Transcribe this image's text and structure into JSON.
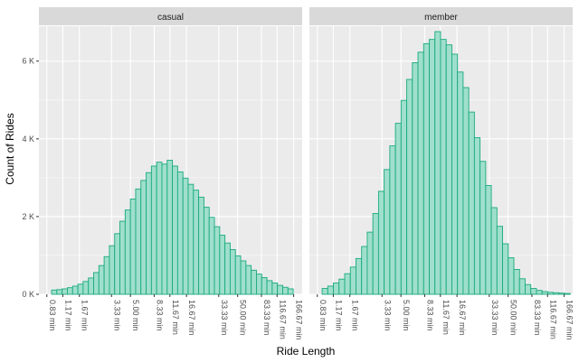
{
  "chart_data": {
    "type": "bar",
    "ylabel": "Count of Rides",
    "xlabel": "Ride Length",
    "x_scale": "log",
    "y_ticks": [
      0,
      2000,
      4000,
      6000
    ],
    "y_tick_labels": [
      "0 K",
      "2 K",
      "4 K",
      "6 K"
    ],
    "ylim": [
      0,
      6900
    ],
    "x_ticks": [
      0.83,
      1.17,
      1.67,
      3.33,
      5.0,
      8.33,
      11.67,
      16.67,
      33.33,
      50.0,
      83.33,
      116.67,
      166.67
    ],
    "x_tick_labels": [
      "0.83 min",
      "1.17 min",
      "1.67 min",
      "3.33 min",
      "5.00 min",
      "8.33 min",
      "11.67 min",
      "16.67 min",
      "33.33 min",
      "50.00 min",
      "83.33 min",
      "116.67 min",
      "166.67 min"
    ],
    "facets": [
      {
        "name": "casual",
        "values": [
          110,
          120,
          140,
          170,
          210,
          260,
          330,
          420,
          560,
          740,
          970,
          1250,
          1560,
          1880,
          2170,
          2450,
          2710,
          2930,
          3130,
          3300,
          3400,
          3350,
          3450,
          3300,
          3150,
          2990,
          2830,
          2680,
          2500,
          2240,
          1980,
          1740,
          1520,
          1320,
          1150,
          990,
          860,
          740,
          620,
          520,
          430,
          350,
          290,
          230,
          180,
          140
        ]
      },
      {
        "name": "member",
        "values": [
          150,
          210,
          290,
          390,
          530,
          700,
          920,
          1230,
          1600,
          2080,
          2650,
          3210,
          3820,
          4400,
          4990,
          5530,
          5960,
          6230,
          6450,
          6560,
          6760,
          6560,
          6420,
          6180,
          5720,
          5320,
          4690,
          4030,
          3420,
          2800,
          2230,
          1750,
          1300,
          940,
          640,
          400,
          250,
          150,
          100,
          70,
          50,
          40,
          30,
          20
        ]
      }
    ],
    "colors": {
      "bar_fill": "#9fdfcb",
      "bar_stroke": "#1aaa7e",
      "panel_bg": "#ebebeb",
      "strip_bg": "#d9d9d9",
      "grid": "#ffffff"
    },
    "grid": true
  }
}
